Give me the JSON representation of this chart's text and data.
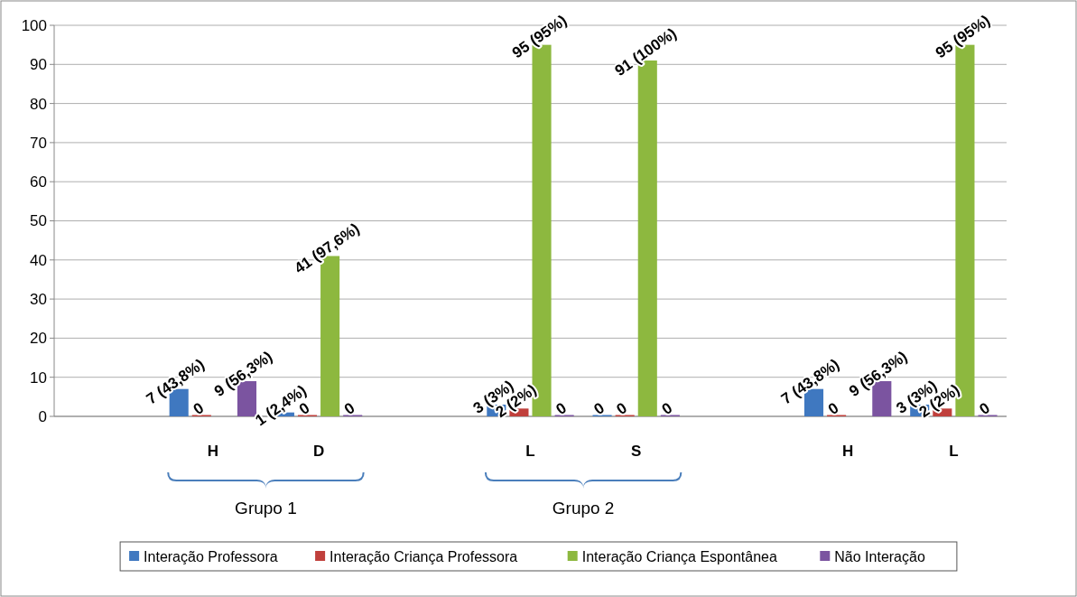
{
  "chart_data": {
    "type": "bar",
    "categories": [
      null,
      "H",
      "D",
      null,
      "L",
      "S",
      null,
      "H",
      "L"
    ],
    "series": [
      {
        "name": "Interação Professora",
        "color": "#3f78c0",
        "values": [
          null,
          7,
          1,
          null,
          3,
          0,
          null,
          7,
          3
        ],
        "value_labels": [
          null,
          "7 (43,8%)",
          "1 (2,4%)",
          null,
          "3 (3%)",
          "0",
          null,
          "7 (43,8%)",
          "3 (3%)"
        ]
      },
      {
        "name": "Interação Criança Professora",
        "color": "#c0403c",
        "values": [
          null,
          0,
          0,
          null,
          2,
          0,
          null,
          0,
          2
        ],
        "value_labels": [
          null,
          "0",
          "0",
          null,
          "2 (2%)",
          "0",
          null,
          "0",
          "2 (2%)"
        ]
      },
      {
        "name": "Interação Criança Espontânea",
        "color": "#8db83f",
        "values": [
          null,
          null,
          41,
          null,
          95,
          91,
          null,
          null,
          95
        ],
        "value_labels": [
          null,
          null,
          "41 (97,6%)",
          null,
          "95 (95%)",
          "91 (100%)",
          null,
          null,
          "95 (95%)"
        ]
      },
      {
        "name": "Não Interação",
        "color": "#7b54a0",
        "values": [
          null,
          9,
          0,
          null,
          0,
          0,
          null,
          9,
          0
        ],
        "value_labels": [
          null,
          "9 (56,3%)",
          "0",
          null,
          "0",
          "0",
          null,
          "9 (56,3%)",
          "0"
        ]
      }
    ],
    "ylim": [
      0,
      100
    ],
    "yticks": [
      0,
      10,
      20,
      30,
      40,
      50,
      60,
      70,
      80,
      90,
      100
    ],
    "grid": "y",
    "legend": "bottom",
    "annotations": [
      "Grupo 1",
      "Grupo 2"
    ]
  }
}
